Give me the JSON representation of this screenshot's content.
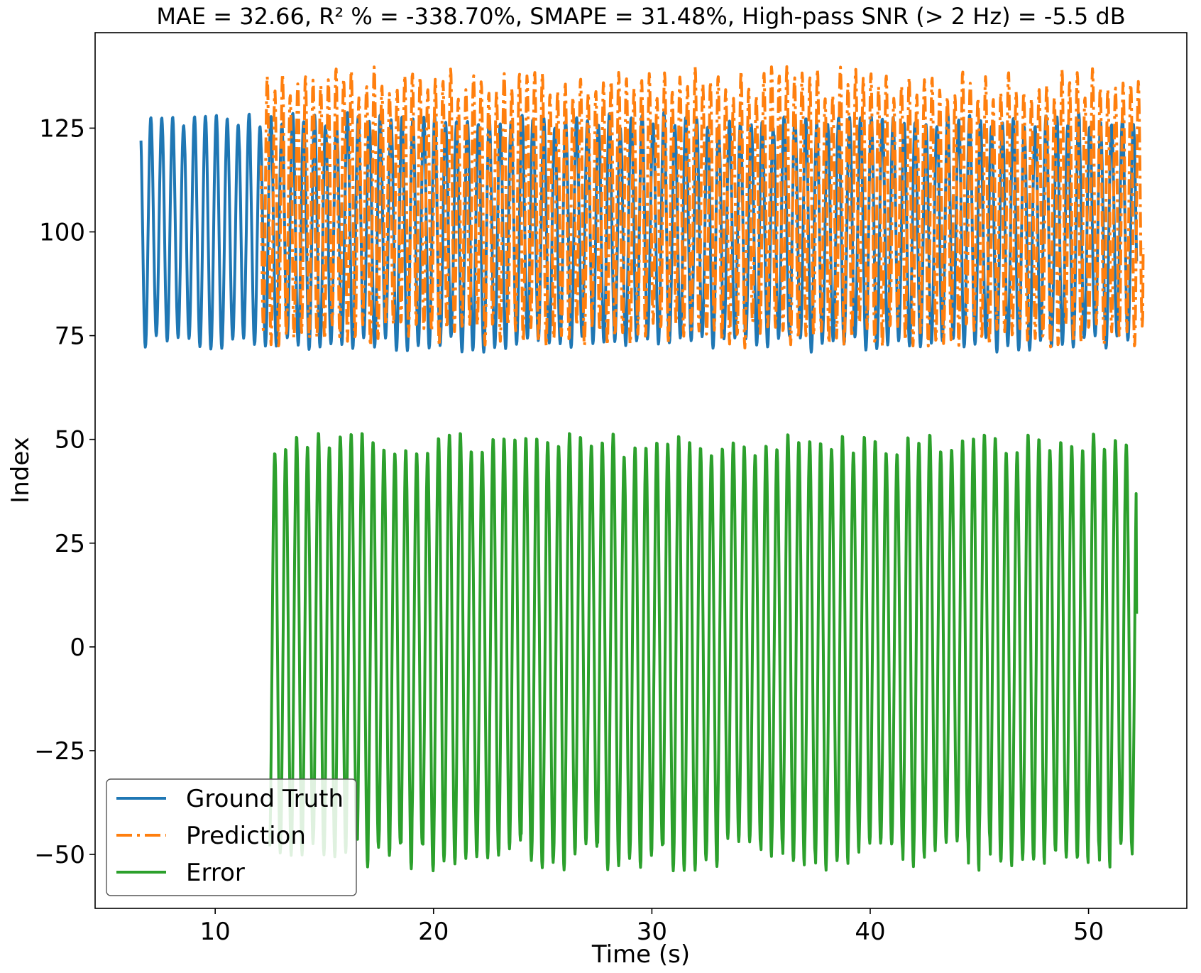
{
  "chart_data": {
    "type": "line",
    "title": "MAE = 32.66, R² % = -338.70%, SMAPE = 31.48%, High-pass SNR (> 2 Hz) = -5.5 dB",
    "xlabel": "Time (s)",
    "ylabel": "Index",
    "xlim": [
      4.5,
      54.5
    ],
    "ylim": [
      -63,
      148
    ],
    "xticks": [
      10,
      20,
      30,
      40,
      50
    ],
    "xtick_labels": [
      "10",
      "20",
      "30",
      "40",
      "50"
    ],
    "yticks": [
      -50,
      -25,
      0,
      25,
      50,
      75,
      100,
      125
    ],
    "ytick_labels": [
      "−50",
      "−25",
      "0",
      "25",
      "50",
      "75",
      "100",
      "125"
    ],
    "grid": false,
    "legend_position": "lower-left",
    "series": [
      {
        "name": "Ground Truth",
        "color": "#1f77b4",
        "style": "solid",
        "t_start": 6.6,
        "t_end": 52.2,
        "period_s": 0.5,
        "peak_range": [
          125,
          129
        ],
        "trough_range": [
          71,
          75
        ],
        "first_value": 122
      },
      {
        "name": "Prediction",
        "color": "#ff7f0e",
        "style": "dashdot",
        "t_start": 12.1,
        "t_end": 52.5,
        "period_s": 0.35,
        "peak_range": [
          132,
          140
        ],
        "trough_range": [
          72,
          78
        ],
        "first_value": 116,
        "last_value": 96
      },
      {
        "name": "Error",
        "color": "#2ca02c",
        "style": "solid",
        "t_start": 12.5,
        "t_end": 52.2,
        "period_s": 0.5,
        "peak_range": [
          46,
          52
        ],
        "trough_range": [
          -54,
          -46
        ],
        "last_value": 8
      }
    ]
  }
}
